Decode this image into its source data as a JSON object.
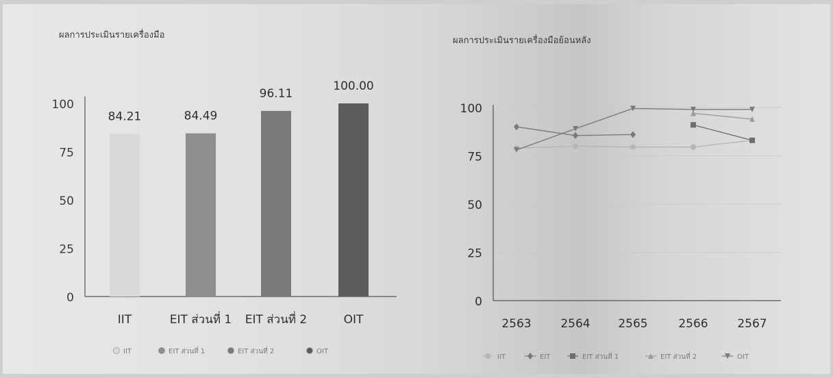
{
  "chart_data": [
    {
      "type": "bar",
      "title": "ผลการประเมินรายเครื่องมือ",
      "categories": [
        "IIT",
        "EIT ส่วนที่ 1",
        "EIT ส่วนที่ 2",
        "OIT"
      ],
      "values": [
        84.21,
        84.49,
        96.11,
        100.0
      ],
      "value_labels": [
        "84.21",
        "84.49",
        "96.11",
        "100.00"
      ],
      "ylim": [
        0,
        100
      ],
      "yticks": [
        "0",
        "25",
        "50",
        "75",
        "100"
      ],
      "grid": false,
      "legend_position": "bottom",
      "colors": [
        "#d9d9d9",
        "#8e8e8e",
        "#7a7a7a",
        "#5c5c5c"
      ],
      "legend": [
        "IIT",
        "EIT ส่วนที่ 1",
        "EIT ส่วนที่ 2",
        "OIT"
      ]
    },
    {
      "type": "line",
      "title": "ผลการประเมินรายเครื่องมือย้อนหลัง",
      "x": [
        "2563",
        "2564",
        "2565",
        "2566",
        "2567"
      ],
      "ylim": [
        0,
        100
      ],
      "yticks": [
        "0",
        "25",
        "50",
        "75",
        "100"
      ],
      "grid": true,
      "legend_position": "bottom",
      "series": [
        {
          "name": "IIT",
          "values": [
            79,
            80,
            79.5,
            79.5,
            83
          ],
          "color": "#b5b5b5",
          "marker": "circle"
        },
        {
          "name": "EIT",
          "values": [
            90,
            85.5,
            86,
            null,
            null
          ],
          "color": "#7a7a7a",
          "marker": "diamond"
        },
        {
          "name": "EIT ส่วนที่ 1",
          "values": [
            null,
            null,
            null,
            91,
            83
          ],
          "color": "#6e6e6e",
          "marker": "square"
        },
        {
          "name": "EIT ส่วนที่ 2",
          "values": [
            null,
            null,
            null,
            97,
            94
          ],
          "color": "#9a9a9a",
          "marker": "triangle"
        },
        {
          "name": "OIT",
          "values": [
            78,
            89,
            99.5,
            99,
            99
          ],
          "color": "#7a7a7a",
          "marker": "triangle-down"
        }
      ]
    }
  ]
}
